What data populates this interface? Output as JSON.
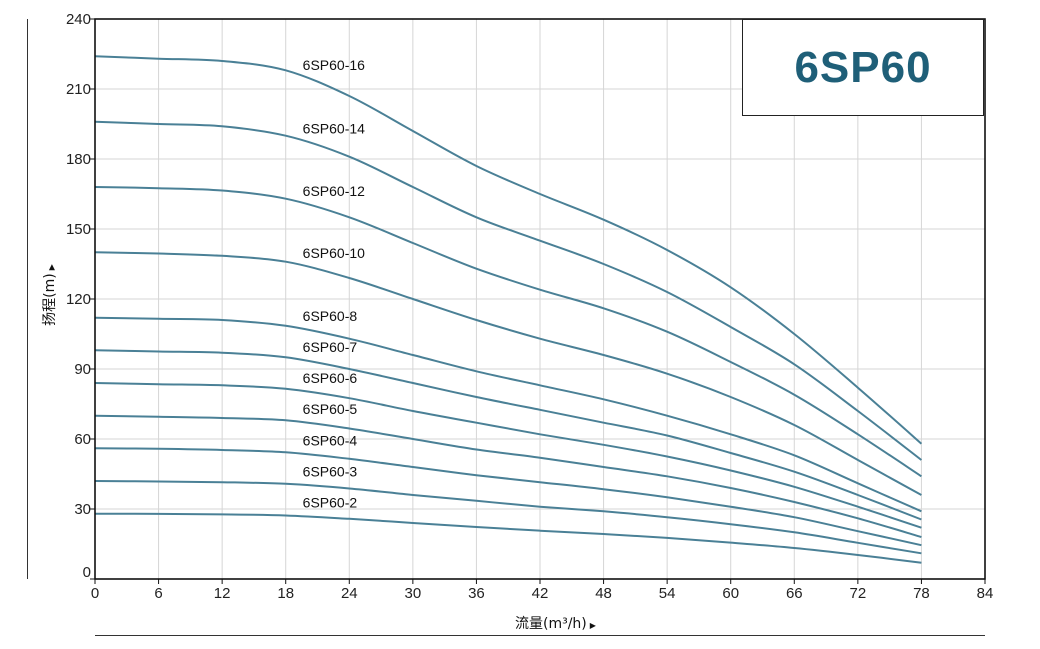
{
  "chart_data": {
    "type": "line",
    "title": "6SP60",
    "xlabel": "流量(m³/h)",
    "ylabel": "扬程(m)",
    "xlim": [
      0,
      84
    ],
    "ylim": [
      0,
      240
    ],
    "xticks": [
      "0",
      "6",
      "12",
      "18",
      "24",
      "30",
      "36",
      "42",
      "48",
      "54",
      "60",
      "66",
      "72",
      "78",
      "84"
    ],
    "yticks": [
      "0",
      "30",
      "60",
      "90",
      "120",
      "150",
      "180",
      "210",
      "240"
    ],
    "grid": true,
    "x": [
      0,
      6,
      12,
      18,
      24,
      30,
      36,
      42,
      48,
      54,
      60,
      66,
      72,
      78
    ],
    "series": [
      {
        "name": "6SP60-16",
        "values": [
          224,
          223,
          222,
          218,
          207,
          192,
          177,
          165,
          154,
          141,
          125,
          105,
          82,
          58
        ]
      },
      {
        "name": "6SP60-14",
        "values": [
          196,
          195,
          194,
          190,
          181,
          168,
          155,
          145,
          135,
          123,
          108,
          92,
          72,
          51
        ]
      },
      {
        "name": "6SP60-12",
        "values": [
          168,
          167.5,
          166.5,
          163,
          155,
          144,
          133,
          124,
          116,
          106,
          93,
          79,
          62,
          44
        ]
      },
      {
        "name": "6SP60-10",
        "values": [
          140,
          139.5,
          138.5,
          136,
          129,
          120,
          111,
          103,
          96,
          88,
          78,
          66,
          51,
          36
        ]
      },
      {
        "name": "6SP60-8",
        "values": [
          112,
          111.5,
          111,
          108.5,
          103,
          96,
          89,
          83,
          77,
          70,
          62,
          53,
          41,
          29
        ]
      },
      {
        "name": "6SP60-7",
        "values": [
          98,
          97.5,
          97,
          95,
          90,
          84,
          78,
          72.5,
          67,
          61.5,
          54,
          46,
          36,
          25.5
        ]
      },
      {
        "name": "6SP60-6",
        "values": [
          84,
          83.5,
          83,
          81.5,
          77.5,
          72,
          67,
          62,
          57.5,
          52.5,
          46.5,
          39.5,
          31,
          22
        ]
      },
      {
        "name": "6SP60-5",
        "values": [
          70,
          69.5,
          69,
          68,
          64.5,
          60,
          55.5,
          52,
          48,
          44,
          39,
          33,
          26,
          18
        ]
      },
      {
        "name": "6SP60-4",
        "values": [
          56,
          55.8,
          55.3,
          54.3,
          51.5,
          48,
          44.5,
          41.5,
          38.5,
          35,
          31,
          26.5,
          20.5,
          14.5
        ]
      },
      {
        "name": "6SP60-3",
        "values": [
          42,
          41.8,
          41.5,
          40.8,
          38.8,
          36,
          33.5,
          31,
          29,
          26.5,
          23.5,
          20,
          15.5,
          11
        ]
      },
      {
        "name": "6SP60-2",
        "values": [
          28,
          27.9,
          27.7,
          27.2,
          25.8,
          24,
          22.3,
          20.7,
          19.3,
          17.6,
          15.6,
          13.3,
          10.3,
          7
        ]
      }
    ],
    "colors": {
      "curve": "#4a8096",
      "title": "#1f5f78",
      "grid": "#d6d6d6",
      "frame": "#111111"
    }
  }
}
